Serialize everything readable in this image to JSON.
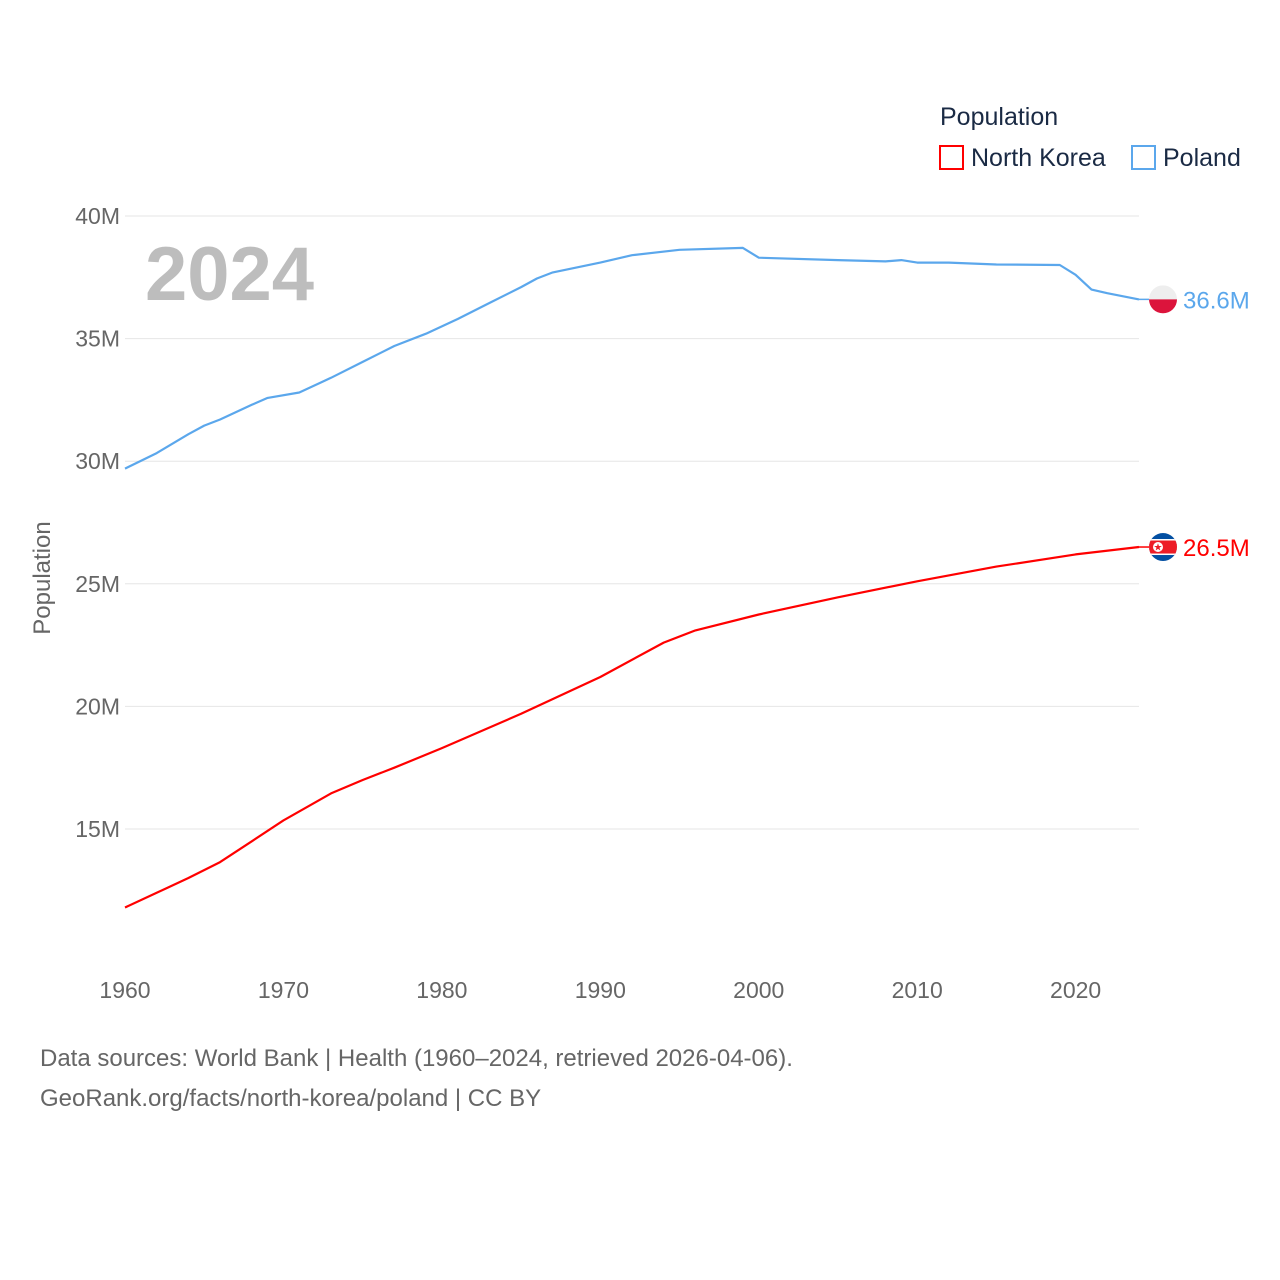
{
  "chart_data": {
    "type": "line",
    "title": "Population",
    "year_watermark": "2024",
    "xlabel": "",
    "ylabel": "Population",
    "xlim": [
      1960,
      2024
    ],
    "ylim": [
      10,
      40
    ],
    "y_unit": "millions",
    "grid": true,
    "legend_position": "top-right",
    "legend_title": "Population",
    "x_ticks": [
      "1960",
      "1970",
      "1980",
      "1990",
      "2000",
      "2010",
      "2020"
    ],
    "x_tick_values": [
      1960,
      1970,
      1980,
      1990,
      2000,
      2010,
      2020
    ],
    "y_ticks": [
      "15M",
      "20M",
      "25M",
      "30M",
      "35M",
      "40M"
    ],
    "y_tick_values": [
      15,
      20,
      25,
      30,
      35,
      40
    ],
    "series": [
      {
        "name": "North Korea",
        "color": "#ff0000",
        "end_label": "26.5M",
        "flag": "north-korea-flag",
        "x": [
          1960,
          1962,
          1964,
          1966,
          1968,
          1970,
          1973,
          1975,
          1977,
          1980,
          1985,
          1990,
          1994,
          1996,
          2000,
          2005,
          2010,
          2015,
          2020,
          2024
        ],
        "y": [
          11.8,
          12.4,
          13.0,
          13.65,
          14.5,
          15.35,
          16.45,
          17.0,
          17.5,
          18.3,
          19.7,
          21.2,
          22.6,
          23.1,
          23.75,
          24.45,
          25.1,
          25.7,
          26.2,
          26.5
        ]
      },
      {
        "name": "Poland",
        "color": "#5ba7ec",
        "end_label": "36.6M",
        "flag": "poland-flag",
        "x": [
          1960,
          1962,
          1964,
          1965,
          1966,
          1968,
          1969,
          1971,
          1973,
          1975,
          1977,
          1979,
          1981,
          1983,
          1985,
          1986,
          1987,
          1990,
          1992,
          1995,
          1999,
          2000,
          2005,
          2008,
          2009,
          2010,
          2012,
          2015,
          2019,
          2020,
          2021,
          2022,
          2024
        ],
        "y": [
          29.7,
          30.33,
          31.1,
          31.45,
          31.7,
          32.3,
          32.58,
          32.8,
          33.4,
          34.05,
          34.7,
          35.2,
          35.8,
          36.45,
          37.1,
          37.45,
          37.7,
          38.1,
          38.4,
          38.62,
          38.7,
          38.3,
          38.2,
          38.15,
          38.2,
          38.1,
          38.1,
          38.02,
          38.0,
          37.6,
          37.0,
          36.85,
          36.6
        ]
      }
    ]
  },
  "footer": {
    "line1": "Data sources: World Bank | Health (1960–2024, retrieved 2026-04-06).",
    "line2": "GeoRank.org/facts/north-korea/poland | CC BY"
  }
}
